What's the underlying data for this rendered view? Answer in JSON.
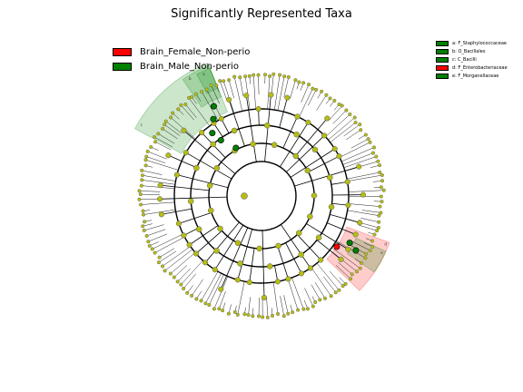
{
  "title": "Significantly Represented Taxa",
  "legend": [
    {
      "label": "Brain_Female_Non-perio",
      "color": "#ff0000"
    },
    {
      "label": "Brain_Male_Non-perio",
      "color": "#008000"
    }
  ],
  "clade_legend": [
    {
      "label": "a: F_Staphylococcaceae",
      "color": "#008000"
    },
    {
      "label": "b: O_Bacillales",
      "color": "#008000"
    },
    {
      "label": "c: C_Bacilli",
      "color": "#008000"
    },
    {
      "label": "d: F_Enterobacteriaceae",
      "color": "#ff0000"
    },
    {
      "label": "e: F_Morganellaceae",
      "color": "#008000"
    }
  ],
  "highlights": [
    {
      "letter": "c",
      "group": "Brain_Male_Non-perio"
    },
    {
      "letter": "b",
      "group": "Brain_Male_Non-perio"
    },
    {
      "letter": "a",
      "group": "Brain_Male_Non-perio"
    },
    {
      "letter": "d",
      "group": "Brain_Female_Non-perio"
    },
    {
      "letter": "e",
      "group": "Brain_Male_Non-perio"
    }
  ],
  "colors": {
    "node": "#b5bd14",
    "node_border": "#555555",
    "female": "#ff0000",
    "male": "#008000"
  }
}
